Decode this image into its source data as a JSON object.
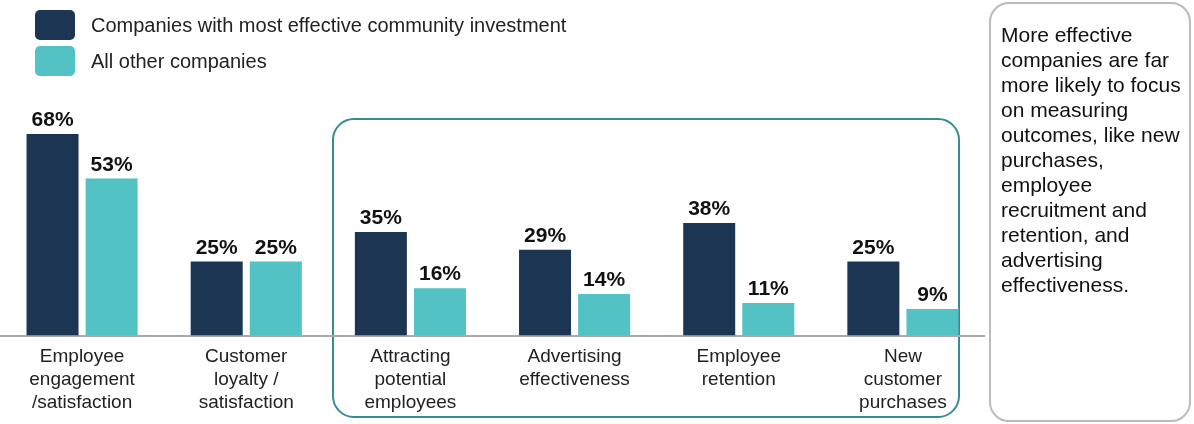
{
  "chart_data": {
    "type": "bar",
    "categories": [
      "Employee engagement /satisfaction",
      "Customer loyalty / satisfaction",
      "Attracting potential employees",
      "Advertising effectiveness",
      "Employee retention",
      "New customer purchases"
    ],
    "series": [
      {
        "name": "Companies with most effective community investment",
        "color": "#1c3553",
        "values": [
          68,
          25,
          35,
          29,
          38,
          25
        ],
        "value_labels": [
          "68%",
          "25%",
          "35%",
          "29%",
          "38%",
          "25%"
        ]
      },
      {
        "name": "All other companies",
        "color": "#52c2c4",
        "values": [
          53,
          25,
          16,
          14,
          11,
          9
        ],
        "value_labels": [
          "53%",
          "25%",
          "16%",
          "14%",
          "11%",
          "9%"
        ]
      }
    ],
    "legend": "top left",
    "grid": false,
    "annotations": [
      "More effective companies are far more likely to focus on measuring outcomes, like new purchases, employee recruitment and retention, and advertising effectiveness."
    ]
  }
}
